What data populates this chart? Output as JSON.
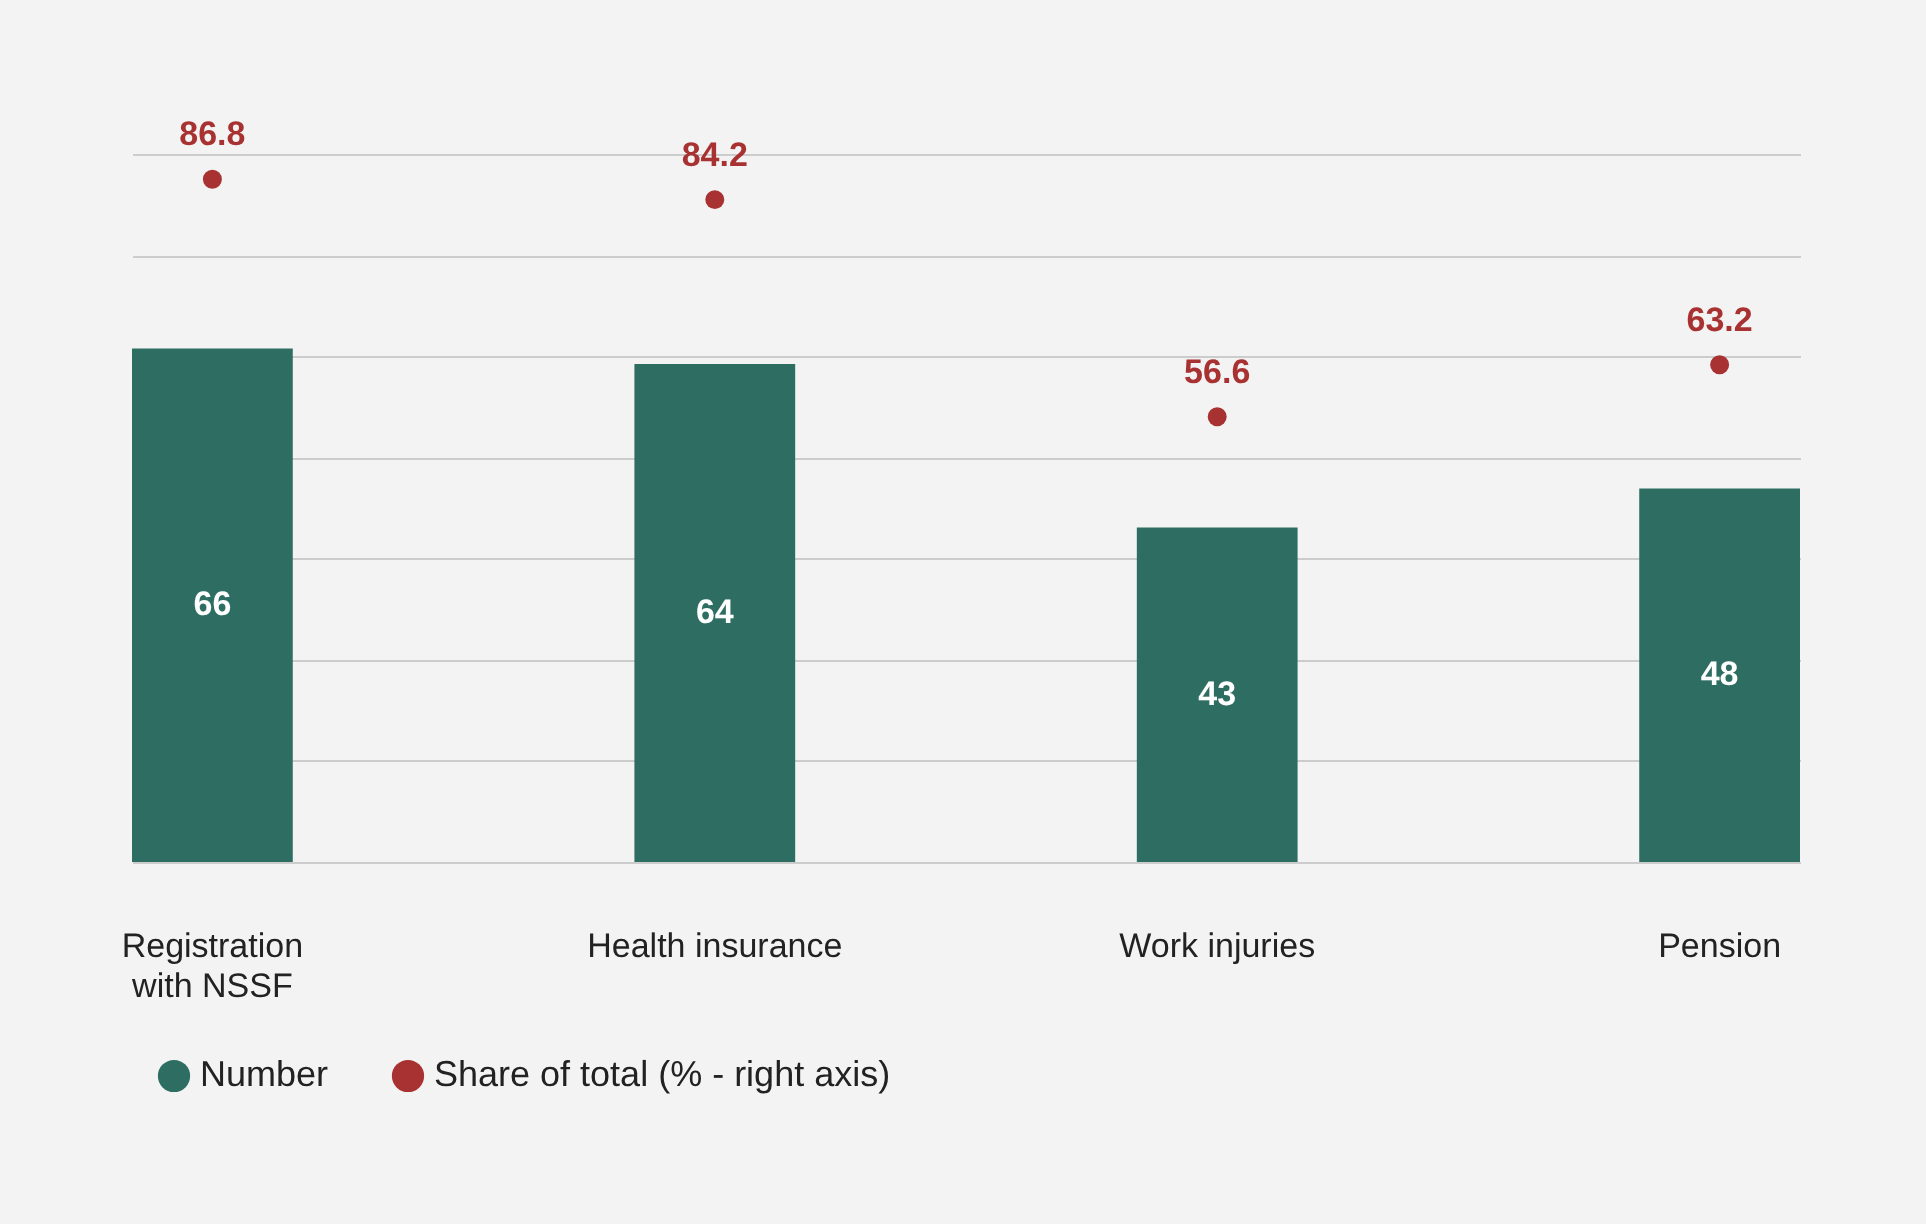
{
  "chart_data": {
    "type": "bar",
    "categories": [
      "Registration with NSSF",
      "Health insurance",
      "Work injuries",
      "Pension"
    ],
    "series": [
      {
        "name": "Number",
        "color": "#2e6e62",
        "values": [
          66,
          64,
          43,
          48
        ]
      },
      {
        "name": "Share of total (% - right axis)",
        "type": "scatter",
        "axis": "y2",
        "color": "#a83232",
        "values": [
          86.8,
          84.2,
          56.6,
          63.2
        ]
      }
    ],
    "ylim": [
      0,
      91
    ],
    "yticks": [
      {
        "value": 0,
        "label": null
      },
      {
        "value": 13,
        "label": null
      },
      {
        "value": 26,
        "label": null
      },
      {
        "value": 39,
        "label": null
      },
      {
        "value": 52,
        "label": null
      },
      {
        "value": 65,
        "label": null
      },
      {
        "value": 78,
        "label": null
      },
      {
        "value": 91,
        "label": null
      }
    ],
    "grid": "y",
    "data_labels": true,
    "legend": "bottom left",
    "marker": "circle",
    "tick_labels": "x"
  }
}
